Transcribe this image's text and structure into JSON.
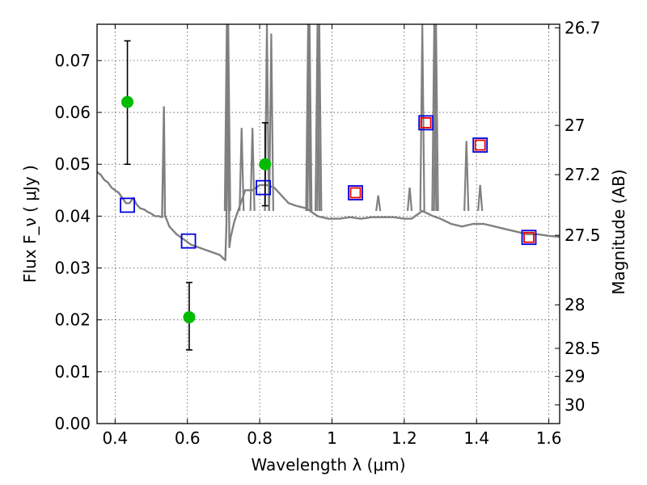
{
  "chart_data": {
    "type": "scatter",
    "xlabel": "Wavelength  λ (μm)",
    "ylabel": "Flux  F_ν  ( μJy )",
    "ylabel_right": "Magnitude (AB)",
    "xlim": [
      0.35,
      1.63
    ],
    "ylim": [
      0.0,
      0.077
    ],
    "grid": true,
    "x_ticks": [
      0.4,
      0.6,
      0.8,
      1.0,
      1.2,
      1.4,
      1.6
    ],
    "x_tick_labels": [
      "0.4",
      "0.6",
      "0.8",
      "1",
      "1.2",
      "1.4",
      "1.6"
    ],
    "y_ticks": [
      0.0,
      0.01,
      0.02,
      0.03,
      0.04,
      0.05,
      0.06,
      0.07
    ],
    "y_tick_labels": [
      "0.00",
      "0.01",
      "0.02",
      "0.03",
      "0.04",
      "0.05",
      "0.06",
      "0.07"
    ],
    "right_ticks": [
      {
        "label": "26.7",
        "flux": 0.0763
      },
      {
        "label": "27",
        "flux": 0.0575
      },
      {
        "label": "27.2",
        "flux": 0.048
      },
      {
        "label": "27.5",
        "flux": 0.0363
      },
      {
        "label": "28",
        "flux": 0.0229
      },
      {
        "label": "28.5",
        "flux": 0.0145
      },
      {
        "label": "29",
        "flux": 0.0091
      },
      {
        "label": "30",
        "flux": 0.0036
      }
    ],
    "series": [
      {
        "kind": "line",
        "color": "#808080",
        "x": [
          0.35,
          0.36,
          0.37,
          0.38,
          0.39,
          0.4,
          0.41,
          0.42,
          0.43,
          0.44,
          0.45,
          0.46,
          0.47,
          0.48,
          0.49,
          0.5,
          0.51,
          0.52,
          0.53,
          0.535,
          0.538,
          0.541,
          0.55,
          0.57,
          0.59,
          0.61,
          0.63,
          0.65,
          0.67,
          0.69,
          0.7,
          0.705,
          0.708,
          0.712,
          0.716,
          0.72,
          0.73,
          0.74,
          0.75,
          0.76,
          0.78,
          0.8,
          0.82,
          0.84,
          0.86,
          0.88,
          0.9,
          0.93,
          0.96,
          0.99,
          1.02,
          1.05,
          1.08,
          1.11,
          1.14,
          1.17,
          1.2,
          1.22,
          1.25,
          1.28,
          1.3,
          1.33,
          1.36,
          1.39,
          1.42,
          1.45,
          1.48,
          1.51,
          1.54,
          1.57,
          1.6,
          1.63
        ],
        "y": [
          0.0485,
          0.048,
          0.047,
          0.0465,
          0.0455,
          0.045,
          0.0445,
          0.0435,
          0.0425,
          0.0425,
          0.0435,
          0.0422,
          0.0415,
          0.0413,
          0.0408,
          0.0405,
          0.04,
          0.04,
          0.0398,
          0.061,
          0.04,
          0.0396,
          0.038,
          0.0365,
          0.0355,
          0.0345,
          0.034,
          0.0335,
          0.033,
          0.0325,
          0.0318,
          0.0315,
          0.0385,
          0.077,
          0.034,
          0.036,
          0.039,
          0.041,
          0.043,
          0.045,
          0.045,
          0.046,
          0.046,
          0.0455,
          0.044,
          0.0425,
          0.042,
          0.0415,
          0.04,
          0.0395,
          0.0395,
          0.0398,
          0.0395,
          0.0398,
          0.0398,
          0.0398,
          0.0395,
          0.0395,
          0.041,
          0.04,
          0.0395,
          0.0385,
          0.038,
          0.0385,
          0.0385,
          0.038,
          0.0375,
          0.037,
          0.0365,
          0.0365,
          0.0362,
          0.036
        ]
      },
      {
        "kind": "spikes",
        "color": "#808080",
        "points": [
          {
            "x": 0.709,
            "y": 0.077
          },
          {
            "x": 0.713,
            "y": 0.077
          },
          {
            "x": 0.75,
            "y": 0.057
          },
          {
            "x": 0.78,
            "y": 0.057
          },
          {
            "x": 0.82,
            "y": 0.077
          },
          {
            "x": 0.832,
            "y": 0.0752
          },
          {
            "x": 0.934,
            "y": 0.077
          },
          {
            "x": 0.938,
            "y": 0.077
          },
          {
            "x": 0.96,
            "y": 0.077
          },
          {
            "x": 0.965,
            "y": 0.077
          },
          {
            "x": 1.128,
            "y": 0.044
          },
          {
            "x": 1.215,
            "y": 0.0455
          },
          {
            "x": 1.25,
            "y": 0.077
          },
          {
            "x": 1.283,
            "y": 0.077
          },
          {
            "x": 1.288,
            "y": 0.077
          },
          {
            "x": 1.372,
            "y": 0.0545
          },
          {
            "x": 1.41,
            "y": 0.046
          }
        ]
      },
      {
        "kind": "points",
        "marker": "circle",
        "color": "#00bb00",
        "x": [
          0.434,
          0.605,
          0.815
        ],
        "y": [
          0.062,
          0.0205,
          0.05
        ],
        "yerr_low": [
          0.05,
          0.0142,
          0.042
        ],
        "yerr_high": [
          0.0738,
          0.0272,
          0.058
        ]
      },
      {
        "kind": "points",
        "marker": "square",
        "color": "#0000dd",
        "x": [
          0.434,
          0.603,
          0.81,
          1.065,
          1.26,
          1.41,
          1.545
        ],
        "y": [
          0.0421,
          0.0352,
          0.0455,
          0.0445,
          0.058,
          0.0537,
          0.0359
        ]
      },
      {
        "kind": "points",
        "marker": "square",
        "color": "#ee0000",
        "x": [
          1.065,
          1.26,
          1.41,
          1.545
        ],
        "y": [
          0.0445,
          0.058,
          0.0537,
          0.0359
        ]
      }
    ]
  }
}
